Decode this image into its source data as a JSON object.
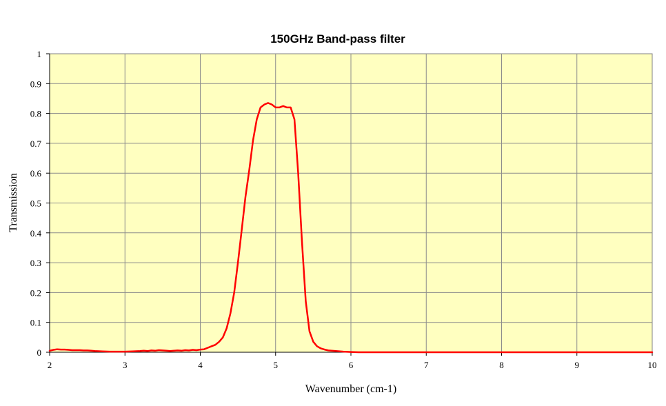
{
  "chart_data": {
    "type": "line",
    "title": "150GHz Band-pass filter",
    "xlabel": "Wavenumber  (cm-1)",
    "ylabel": "Transmission",
    "xlim": [
      2,
      10
    ],
    "ylim": [
      0,
      1
    ],
    "x_ticks": [
      "2",
      "3",
      "4",
      "5",
      "6",
      "7",
      "8",
      "9",
      "10"
    ],
    "y_ticks": [
      "0",
      "0.1",
      "0.2",
      "0.3",
      "0.4",
      "0.5",
      "0.6",
      "0.7",
      "0.8",
      "0.9",
      "1"
    ],
    "grid": true,
    "legend": "none",
    "colors": {
      "plot_background": "#ffffc0",
      "line": "#ff0000",
      "grid": "#8c8c8c"
    },
    "series": [
      {
        "x": [
          2.0,
          2.05,
          2.1,
          2.15,
          2.2,
          2.25,
          2.3,
          2.35,
          2.4,
          2.45,
          2.5,
          2.55,
          2.6,
          2.7,
          2.8,
          2.9,
          3.0,
          3.1,
          3.2,
          3.25,
          3.3,
          3.35,
          3.4,
          3.45,
          3.5,
          3.55,
          3.6,
          3.65,
          3.7,
          3.75,
          3.8,
          3.85,
          3.9,
          3.95,
          4.0,
          4.05,
          4.1,
          4.15,
          4.2,
          4.25,
          4.3,
          4.35,
          4.4,
          4.45,
          4.5,
          4.55,
          4.6,
          4.65,
          4.7,
          4.75,
          4.8,
          4.85,
          4.9,
          4.95,
          5.0,
          5.05,
          5.1,
          5.15,
          5.2,
          5.25,
          5.3,
          5.35,
          5.4,
          5.45,
          5.5,
          5.55,
          5.6,
          5.65,
          5.7,
          5.8,
          5.9,
          6.0,
          6.1,
          6.5,
          7.0,
          8.0,
          9.0,
          10.0
        ],
        "y": [
          0.005,
          0.008,
          0.01,
          0.009,
          0.009,
          0.008,
          0.007,
          0.007,
          0.007,
          0.006,
          0.006,
          0.005,
          0.004,
          0.003,
          0.002,
          0.002,
          0.002,
          0.003,
          0.004,
          0.005,
          0.004,
          0.006,
          0.005,
          0.007,
          0.006,
          0.005,
          0.004,
          0.005,
          0.006,
          0.005,
          0.007,
          0.006,
          0.008,
          0.007,
          0.009,
          0.01,
          0.015,
          0.02,
          0.025,
          0.035,
          0.05,
          0.08,
          0.13,
          0.2,
          0.3,
          0.41,
          0.52,
          0.61,
          0.71,
          0.78,
          0.82,
          0.83,
          0.835,
          0.83,
          0.82,
          0.82,
          0.825,
          0.82,
          0.82,
          0.78,
          0.6,
          0.37,
          0.17,
          0.07,
          0.035,
          0.02,
          0.013,
          0.009,
          0.006,
          0.004,
          0.002,
          0.001,
          0.0,
          0.0,
          0.0,
          0.0,
          0.0,
          0.0
        ]
      }
    ]
  }
}
